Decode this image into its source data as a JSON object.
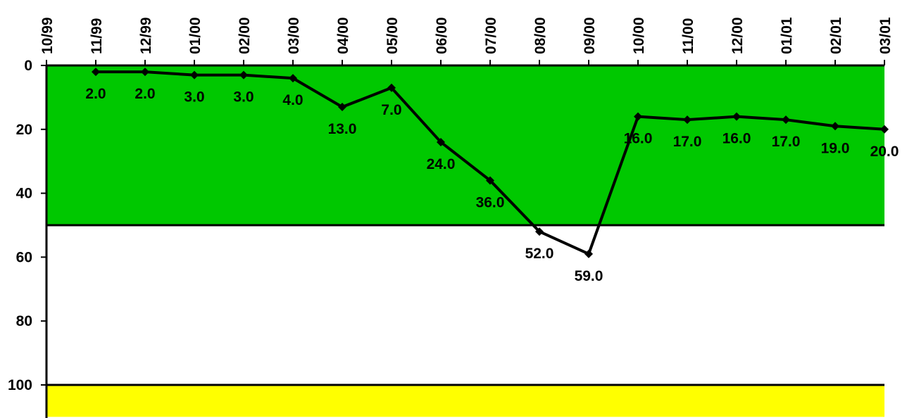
{
  "chart_data": {
    "type": "line",
    "x_ticks": [
      "10/99",
      "11/99",
      "12/99",
      "01/00",
      "02/00",
      "03/00",
      "04/00",
      "05/00",
      "06/00",
      "07/00",
      "08/00",
      "09/00",
      "10/00",
      "11/00",
      "12/00",
      "01/01",
      "02/01",
      "03/01"
    ],
    "categories": [
      "11/99",
      "12/99",
      "01/00",
      "02/00",
      "03/00",
      "04/00",
      "05/00",
      "06/00",
      "07/00",
      "08/00",
      "09/00",
      "10/00",
      "11/00",
      "12/00",
      "01/01",
      "02/01",
      "03/01"
    ],
    "series": [
      {
        "values": [
          2.0,
          2.0,
          3.0,
          3.0,
          4.0,
          13.0,
          7.0,
          24.0,
          36.0,
          52.0,
          59.0,
          16.0,
          17.0,
          16.0,
          17.0,
          19.0,
          20.0
        ]
      }
    ],
    "data_labels": [
      "2.0",
      "2.0",
      "3.0",
      "3.0",
      "4.0",
      "13.0",
      "7.0",
      "24.0",
      "36.0",
      "52.0",
      "59.0",
      "16.0",
      "17.0",
      "16.0",
      "17.0",
      "19.0",
      "20.0"
    ],
    "y_ticks": [
      "0",
      "20",
      "40",
      "60",
      "80",
      "100"
    ],
    "ylim": [
      0,
      110
    ],
    "y_inverted": true,
    "x_axis_position": "top",
    "bands": [
      {
        "from": 0,
        "to": 50,
        "color": "#00c800"
      },
      {
        "from": 50,
        "to": 100,
        "color": "#ffffff"
      },
      {
        "from": 100,
        "to": 110,
        "color": "#ffff00"
      }
    ],
    "line_color": "#000000"
  }
}
